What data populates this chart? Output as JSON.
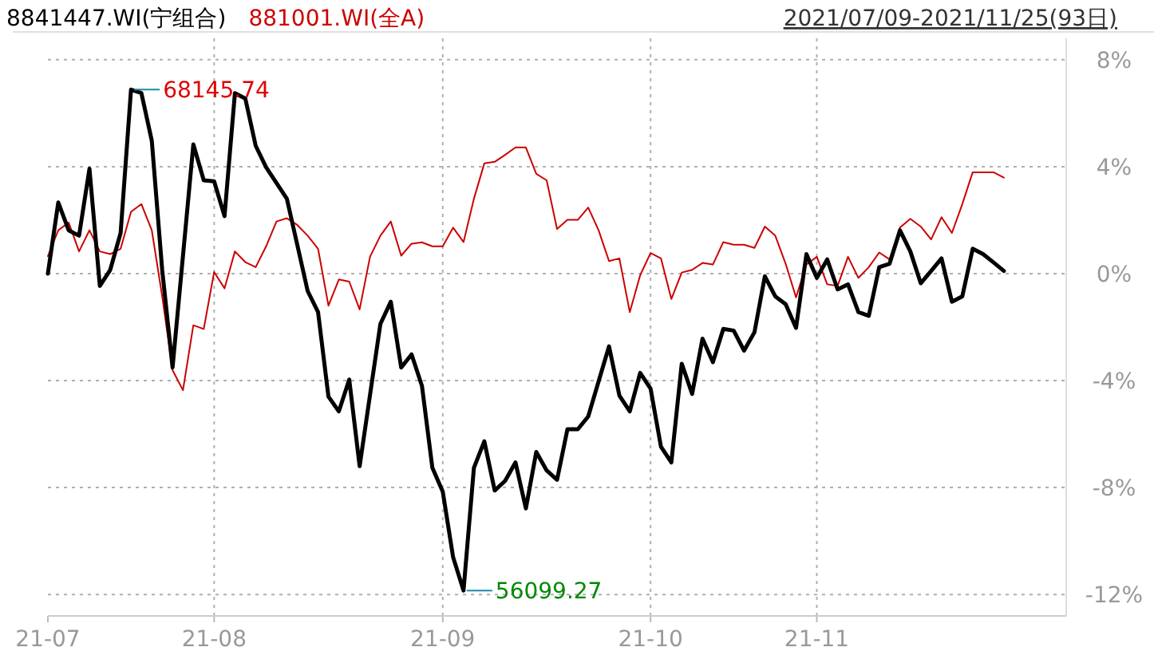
{
  "chart_data": {
    "type": "line",
    "subtitle": "2021/07/09-2021/11/25(93日)",
    "legend": "top left",
    "grid": true,
    "categories": [
      "21-07",
      null,
      null,
      null,
      null,
      null,
      null,
      null,
      null,
      null,
      null,
      null,
      null,
      null,
      null,
      null,
      "21-08",
      null,
      null,
      null,
      null,
      null,
      null,
      null,
      null,
      null,
      null,
      null,
      null,
      null,
      null,
      null,
      null,
      null,
      null,
      null,
      null,
      null,
      "21-09",
      null,
      null,
      null,
      null,
      null,
      null,
      null,
      null,
      null,
      null,
      null,
      null,
      null,
      null,
      null,
      null,
      null,
      null,
      null,
      "21-10",
      null,
      null,
      null,
      null,
      null,
      null,
      null,
      null,
      null,
      null,
      null,
      null,
      null,
      null,
      null,
      "21-11",
      null,
      null,
      null,
      null,
      null,
      null,
      null,
      null,
      null,
      null,
      null,
      null,
      null,
      null,
      null,
      null,
      null,
      null
    ],
    "ylim": [
      -12.8,
      8.8
    ],
    "yticks": [
      {
        "value": 8,
        "label": "8%"
      },
      {
        "value": 4,
        "label": "4%"
      },
      {
        "value": 0,
        "label": "0%"
      },
      {
        "value": -4,
        "label": "-4%"
      },
      {
        "value": -8,
        "label": "-8%"
      },
      {
        "value": -12,
        "label": "-12%"
      }
    ],
    "annotations": [
      "68145.74",
      "56099.27"
    ],
    "series": [
      {
        "name": "8841447.WI(宁组合)",
        "color": "#000000",
        "values": [
          0,
          2.66,
          1.62,
          1.42,
          3.92,
          -0.46,
          0.14,
          1.52,
          6.88,
          6.75,
          4.97,
          0.14,
          -3.51,
          0.66,
          4.83,
          3.49,
          3.45,
          2.15,
          6.75,
          6.55,
          4.78,
          3.98,
          3.39,
          2.8,
          1.08,
          -0.65,
          -1.44,
          -4.6,
          -5.15,
          -3.96,
          -7.2,
          -4.54,
          -1.88,
          -1.05,
          -3.51,
          -3.02,
          -4.2,
          -7.26,
          -8.15,
          -10.61,
          -11.85,
          -7.26,
          -6.27,
          -8.11,
          -7.75,
          -7.06,
          -8.78,
          -6.67,
          -7.36,
          -7.71,
          -5.82,
          -5.82,
          -5.34,
          -4.03,
          -2.72,
          -4.56,
          -5.15,
          -3.71,
          -4.3,
          -6.47,
          -7.06,
          -3.37,
          -4.5,
          -2.43,
          -3.31,
          -2.07,
          -2.13,
          -2.88,
          -2.19,
          -0.1,
          -0.85,
          -1.14,
          -2.03,
          0.73,
          -0.16,
          0.53,
          -0.59,
          -0.4,
          -1.44,
          -1.58,
          0.24,
          0.37,
          1.62,
          0.83,
          -0.36,
          0.1,
          0.57,
          -1.05,
          -0.85,
          0.93,
          0.73,
          0.42,
          0.1
        ]
      },
      {
        "name": "881001.WI(全A)",
        "color": "#cc0000",
        "values": [
          0.65,
          1.62,
          1.91,
          0.83,
          1.62,
          0.83,
          0.73,
          0.93,
          2.31,
          2.6,
          1.62,
          -0.85,
          -3.61,
          -4.36,
          -1.93,
          -2.07,
          0.06,
          -0.55,
          0.83,
          0.43,
          0.24,
          1.02,
          1.95,
          2.07,
          1.82,
          1.42,
          0.93,
          -1.2,
          -0.22,
          -0.3,
          -1.34,
          0.63,
          1.42,
          1.95,
          0.67,
          1.12,
          1.17,
          1.02,
          1.02,
          1.72,
          1.18,
          2.8,
          4.12,
          4.18,
          4.44,
          4.72,
          4.72,
          3.73,
          3.49,
          1.67,
          2.01,
          2.01,
          2.47,
          1.62,
          0.47,
          0.57,
          -1.44,
          -0.06,
          0.77,
          0.57,
          -0.95,
          0.04,
          0.14,
          0.4,
          0.34,
          1.18,
          1.08,
          1.08,
          0.96,
          1.76,
          1.42,
          0.37,
          -0.89,
          0.34,
          0.63,
          -0.4,
          -0.46,
          0.63,
          -0.16,
          0.24,
          0.79,
          0.53,
          1.72,
          2.05,
          1.76,
          1.28,
          2.11,
          1.52,
          2.6,
          3.79,
          3.79,
          3.79,
          3.59
        ]
      }
    ]
  }
}
